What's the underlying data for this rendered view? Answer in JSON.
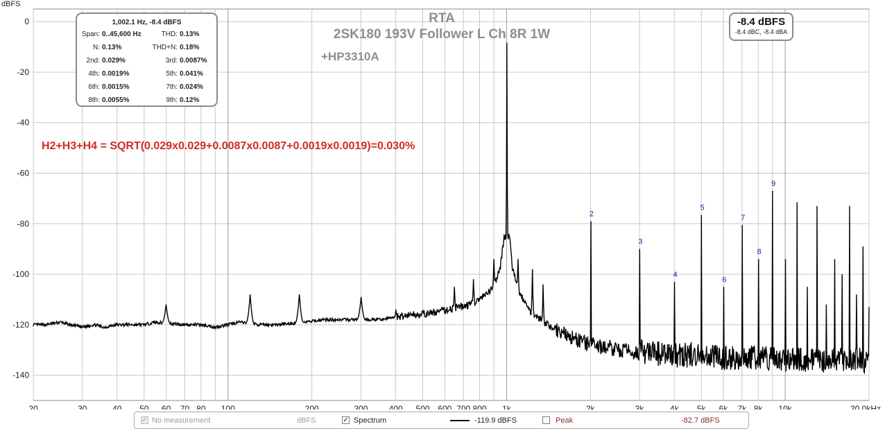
{
  "chart_data": {
    "type": "line",
    "title": "RTA",
    "subtitle": "2SK180 193V Follower L Ch 8R 1W",
    "subtitle2": "+HP3310A",
    "ylabel": "dBFS",
    "xunit_suffix": "Hz",
    "x_scale": "log",
    "xlim": [
      20,
      20000
    ],
    "ylim": [
      -150,
      5
    ],
    "grid": true,
    "y_ticks": [
      0,
      -20,
      -40,
      -60,
      -80,
      -100,
      -120,
      -140
    ],
    "x_tick_values": [
      20,
      30,
      40,
      50,
      60,
      70,
      80,
      90,
      100,
      200,
      300,
      400,
      500,
      600,
      700,
      800,
      900,
      1000,
      2000,
      3000,
      4000,
      5000,
      6000,
      7000,
      8000,
      9000,
      10000,
      20000
    ],
    "x_tick_labels": [
      "20",
      "30",
      "40",
      "50",
      "60",
      "70",
      "80",
      "",
      "100",
      "200",
      "300",
      "400",
      "500",
      "600",
      "700",
      "800",
      "",
      "1k",
      "2k",
      "3k",
      "4k",
      "5k",
      "6k",
      "7k",
      "8k",
      "",
      "10k",
      "20.0kHz"
    ],
    "series": [
      {
        "color": "#000000",
        "fundamental": {
          "freq": 1002.1,
          "level": -8.4
        },
        "noise_floor_profile": [
          [
            20,
            -120
          ],
          [
            22,
            -120
          ],
          [
            25,
            -119
          ],
          [
            27,
            -120
          ],
          [
            30,
            -121
          ],
          [
            33,
            -120
          ],
          [
            36,
            -121
          ],
          [
            40,
            -120
          ],
          [
            45,
            -120
          ],
          [
            50,
            -120
          ],
          [
            55,
            -119
          ],
          [
            70,
            -120
          ],
          [
            80,
            -120
          ],
          [
            90,
            -121
          ],
          [
            100,
            -120
          ],
          [
            110,
            -119
          ],
          [
            130,
            -120
          ],
          [
            150,
            -120
          ],
          [
            190,
            -119
          ],
          [
            220,
            -118
          ],
          [
            270,
            -118
          ],
          [
            300,
            -118
          ],
          [
            350,
            -118
          ],
          [
            400,
            -117
          ],
          [
            450,
            -116
          ],
          [
            500,
            -116
          ],
          [
            560,
            -115
          ],
          [
            620,
            -114
          ],
          [
            680,
            -113
          ],
          [
            740,
            -112
          ],
          [
            800,
            -110
          ],
          [
            850,
            -108
          ],
          [
            900,
            -105
          ],
          [
            950,
            -97
          ],
          [
            980,
            -85
          ],
          [
            1025,
            -85
          ],
          [
            1050,
            -98
          ],
          [
            1100,
            -106
          ],
          [
            1200,
            -114
          ],
          [
            1400,
            -120
          ],
          [
            1700,
            -125
          ],
          [
            2000,
            -128
          ],
          [
            2500,
            -130
          ],
          [
            3000,
            -131
          ],
          [
            4000,
            -132
          ],
          [
            5000,
            -132
          ],
          [
            6000,
            -133
          ],
          [
            7000,
            -133
          ],
          [
            8000,
            -133
          ],
          [
            10000,
            -134
          ],
          [
            14000,
            -134
          ],
          [
            20000,
            -134
          ]
        ],
        "spurs": [
          {
            "freq": 60,
            "level": -112
          },
          {
            "freq": 120,
            "level": -108
          },
          {
            "freq": 180,
            "level": -108
          },
          {
            "freq": 300,
            "level": -109
          },
          {
            "freq": 400,
            "level": -114
          },
          {
            "freq": 650,
            "level": -105
          },
          {
            "freq": 760,
            "level": -102
          },
          {
            "freq": 900,
            "level": -94
          },
          {
            "freq": 1100,
            "level": -94
          },
          {
            "freq": 1240,
            "level": -98
          },
          {
            "freq": 1350,
            "level": -104
          },
          {
            "freq": 2050,
            "level": -125
          },
          {
            "freq": 2350,
            "level": -126
          }
        ],
        "harmonics": [
          {
            "n": 2,
            "freq": 2004,
            "level": -79
          },
          {
            "n": 3,
            "freq": 3006,
            "level": -90
          },
          {
            "n": 4,
            "freq": 4008,
            "level": -103
          },
          {
            "n": 5,
            "freq": 5010,
            "level": -76.5
          },
          {
            "n": 6,
            "freq": 6012,
            "level": -105
          },
          {
            "n": 7,
            "freq": 7014,
            "level": -80.5
          },
          {
            "n": 8,
            "freq": 8016,
            "level": -94
          },
          {
            "n": 9,
            "freq": 9018,
            "level": -67
          },
          {
            "n": 10,
            "freq": 10020,
            "level": -94
          },
          {
            "n": 11,
            "freq": 11022,
            "level": -71.5
          },
          {
            "n": 12,
            "freq": 12024,
            "level": -105
          },
          {
            "n": 13,
            "freq": 13026,
            "level": -73
          },
          {
            "n": 14,
            "freq": 14028,
            "level": -112
          },
          {
            "n": 15,
            "freq": 15030,
            "level": -94
          },
          {
            "n": 16,
            "freq": 16032,
            "level": -100
          },
          {
            "n": 17,
            "freq": 17034,
            "level": -73
          },
          {
            "n": 18,
            "freq": 18036,
            "level": -108
          },
          {
            "n": 19,
            "freq": 19038,
            "level": -89
          },
          {
            "n": 20,
            "freq": 20040,
            "level": -113
          }
        ],
        "labeled_harmonics": [
          2,
          3,
          4,
          5,
          6,
          7,
          8,
          9
        ]
      }
    ],
    "annotation": "H2+H3+H4 = SQRT(0.029x0.029+0.0087x0.0087+0.0019x0.0019)=0.030%"
  },
  "distortion_panel": {
    "header": "1,002.1 Hz, -8.4 dBFS",
    "rows": [
      {
        "l1": "Span:",
        "v1": "0..45,600 Hz",
        "l2": "THD:",
        "v2": "0.13%"
      },
      {
        "l1": "N:",
        "v1": "0.13%",
        "l2": "THD+N:",
        "v2": "0.18%"
      },
      {
        "l1": "2nd:",
        "v1": "0.029%",
        "l2": "3rd:",
        "v2": "0.0087%"
      },
      {
        "l1": "4th:",
        "v1": "0.0019%",
        "l2": "5th:",
        "v2": "0.041%"
      },
      {
        "l1": "6th:",
        "v1": "0.0015%",
        "l2": "7th:",
        "v2": "0.024%"
      },
      {
        "l1": "8th:",
        "v1": "0.0055%",
        "l2": "9th:",
        "v2": "0.12%"
      }
    ]
  },
  "level_box": {
    "main": "-8.4 dBFS",
    "sub": "-8.4 dBC, -8.4 dBA"
  },
  "legend": {
    "no_measurement": {
      "label": "No measurement",
      "unit": "dBFS",
      "checked": true,
      "disabled": true
    },
    "spectrum": {
      "label": "Spectrum",
      "value": "-119.9 dBFS",
      "checked": true
    },
    "peak": {
      "label": "Peak",
      "value": "-82.7 dBFS",
      "checked": false
    }
  },
  "colors": {
    "trace": "#000000",
    "grid": "#c8c8c8",
    "annotation": "#d02a2a",
    "harmonic_label": "#1a1a9e",
    "title": "#8e8e8e"
  }
}
